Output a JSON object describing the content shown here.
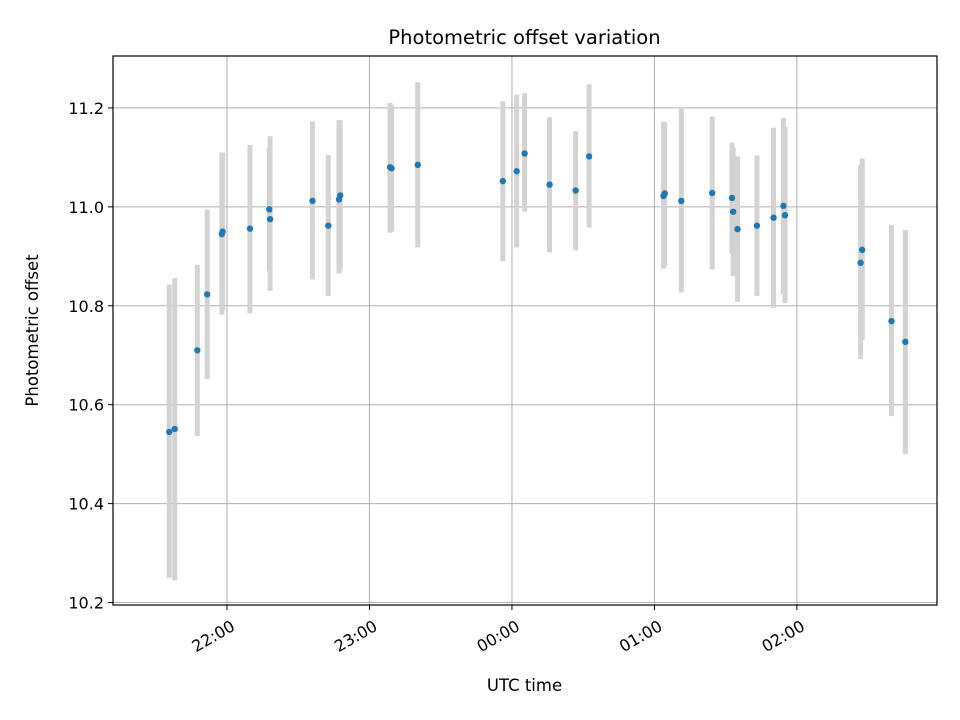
{
  "chart_data": {
    "type": "scatter",
    "title": "Photometric offset variation",
    "xlabel": "UTC time",
    "ylabel": "Photometric offset",
    "x_unit": "UTC time of night (ticks after midnight labeled 00:00, 01:00, 02:00)",
    "xlim": [
      "21:12",
      "02:59"
    ],
    "ylim": [
      10.195,
      11.305
    ],
    "x_ticks": [
      "22:00",
      "23:00",
      "00:00",
      "01:00",
      "02:00"
    ],
    "y_ticks": [
      10.2,
      10.4,
      10.6,
      10.8,
      11.0,
      11.2
    ],
    "y_tick_labels": [
      "10.2",
      "10.4",
      "10.6",
      "10.8",
      "11.0",
      "11.2"
    ],
    "grid": true,
    "x_tick_rotation": "30 degrees",
    "series": [
      {
        "marker_color": "#1f77b4",
        "errorbar_color": "#d3d3d3",
        "points": [
          {
            "x": "21:35:40",
            "y": 10.545,
            "ylow": 10.25,
            "yhigh": 10.843
          },
          {
            "x": "21:38:00",
            "y": 10.551,
            "ylow": 10.245,
            "yhigh": 10.856
          },
          {
            "x": "21:47:30",
            "y": 10.71,
            "ylow": 10.537,
            "yhigh": 10.883
          },
          {
            "x": "21:51:40",
            "y": 10.823,
            "ylow": 10.652,
            "yhigh": 10.995
          },
          {
            "x": "21:57:50",
            "y": 10.945,
            "ylow": 10.782,
            "yhigh": 11.11
          },
          {
            "x": "21:58:10",
            "y": 10.95,
            "ylow": 10.79,
            "yhigh": 11.11
          },
          {
            "x": "22:09:40",
            "y": 10.956,
            "ylow": 10.785,
            "yhigh": 11.125
          },
          {
            "x": "22:17:50",
            "y": 10.995,
            "ylow": 10.87,
            "yhigh": 11.12
          },
          {
            "x": "22:18:10",
            "y": 10.975,
            "ylow": 10.83,
            "yhigh": 11.143
          },
          {
            "x": "22:36:00",
            "y": 11.012,
            "ylow": 10.853,
            "yhigh": 11.173
          },
          {
            "x": "22:42:40",
            "y": 10.962,
            "ylow": 10.82,
            "yhigh": 11.105
          },
          {
            "x": "22:47:10",
            "y": 11.015,
            "ylow": 10.865,
            "yhigh": 11.175
          },
          {
            "x": "22:47:40",
            "y": 11.023,
            "ylow": 10.87,
            "yhigh": 11.175
          },
          {
            "x": "23:08:40",
            "y": 11.08,
            "ylow": 10.948,
            "yhigh": 11.21
          },
          {
            "x": "23:09:20",
            "y": 11.078,
            "ylow": 10.95,
            "yhigh": 11.205
          },
          {
            "x": "23:20:20",
            "y": 11.085,
            "ylow": 10.918,
            "yhigh": 11.252
          },
          {
            "x": "23:56:10",
            "y": 11.052,
            "ylow": 10.89,
            "yhigh": 11.213
          },
          {
            "x": "00:02:00",
            "y": 11.072,
            "ylow": 10.918,
            "yhigh": 11.227
          },
          {
            "x": "00:05:20",
            "y": 11.108,
            "ylow": 10.99,
            "yhigh": 11.23
          },
          {
            "x": "00:15:50",
            "y": 11.045,
            "ylow": 10.908,
            "yhigh": 11.181
          },
          {
            "x": "00:26:50",
            "y": 11.033,
            "ylow": 10.912,
            "yhigh": 11.153
          },
          {
            "x": "00:32:30",
            "y": 11.102,
            "ylow": 10.958,
            "yhigh": 11.248
          },
          {
            "x": "01:03:50",
            "y": 11.022,
            "ylow": 10.875,
            "yhigh": 11.172
          },
          {
            "x": "01:04:20",
            "y": 11.027,
            "ylow": 10.88,
            "yhigh": 11.172
          },
          {
            "x": "01:11:20",
            "y": 11.012,
            "ylow": 10.827,
            "yhigh": 11.198
          },
          {
            "x": "01:24:20",
            "y": 11.028,
            "ylow": 10.873,
            "yhigh": 11.183
          },
          {
            "x": "01:32:40",
            "y": 11.018,
            "ylow": 10.905,
            "yhigh": 11.13
          },
          {
            "x": "01:33:10",
            "y": 10.99,
            "ylow": 10.86,
            "yhigh": 11.12
          },
          {
            "x": "01:35:00",
            "y": 10.955,
            "ylow": 10.808,
            "yhigh": 11.102
          },
          {
            "x": "01:43:10",
            "y": 10.962,
            "ylow": 10.82,
            "yhigh": 11.104
          },
          {
            "x": "01:50:10",
            "y": 10.978,
            "ylow": 10.796,
            "yhigh": 11.16
          },
          {
            "x": "01:54:20",
            "y": 11.002,
            "ylow": 10.823,
            "yhigh": 11.18
          },
          {
            "x": "01:55:00",
            "y": 10.983,
            "ylow": 10.805,
            "yhigh": 11.162
          },
          {
            "x": "02:26:50",
            "y": 10.887,
            "ylow": 10.692,
            "yhigh": 11.085
          },
          {
            "x": "02:27:30",
            "y": 10.913,
            "ylow": 10.73,
            "yhigh": 11.098
          },
          {
            "x": "02:39:50",
            "y": 10.769,
            "ylow": 10.577,
            "yhigh": 10.963
          },
          {
            "x": "02:45:40",
            "y": 10.727,
            "ylow": 10.5,
            "yhigh": 10.953
          }
        ]
      }
    ]
  }
}
